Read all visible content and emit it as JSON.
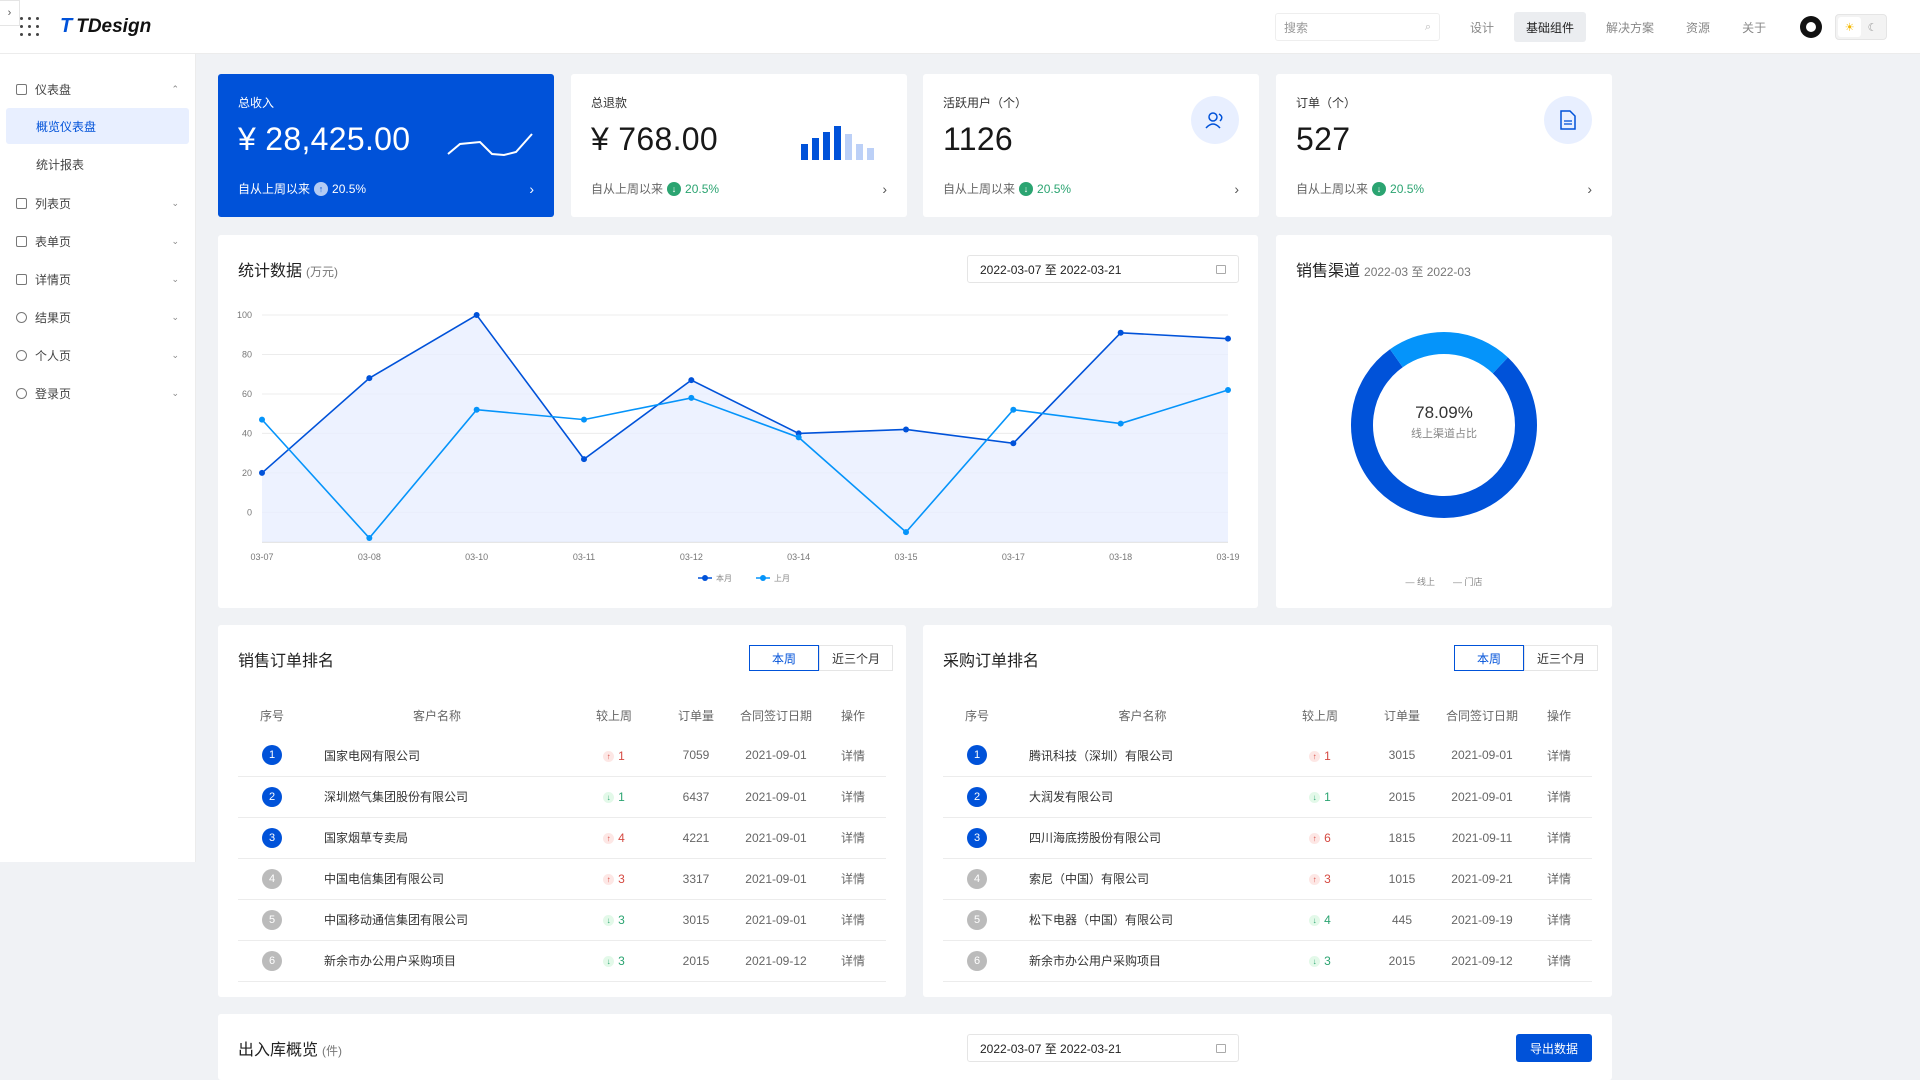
{
  "header": {
    "logo_text": "TDesign",
    "search_placeholder": "搜索",
    "nav": [
      "设计",
      "基础组件",
      "解决方案",
      "资源",
      "关于"
    ],
    "active_nav": "基础组件"
  },
  "sidebar": {
    "items": [
      {
        "label": "仪表盘",
        "expanded": true,
        "children": [
          "概览仪表盘",
          "统计报表"
        ]
      },
      {
        "label": "列表页"
      },
      {
        "label": "表单页"
      },
      {
        "label": "详情页"
      },
      {
        "label": "结果页"
      },
      {
        "label": "个人页"
      },
      {
        "label": "登录页"
      }
    ],
    "active_child": "概览仪表盘"
  },
  "stats": [
    {
      "label": "总收入",
      "value": "¥ 28,425.00",
      "foot": "自从上周以来",
      "pct": "20.5%",
      "trend": "up"
    },
    {
      "label": "总退款",
      "value": "¥ 768.00",
      "foot": "自从上周以来",
      "pct": "20.5%",
      "trend": "down"
    },
    {
      "label": "活跃用户（个）",
      "value": "1126",
      "foot": "自从上周以来",
      "pct": "20.5%",
      "trend": "down"
    },
    {
      "label": "订单（个）",
      "value": "527",
      "foot": "自从上周以来",
      "pct": "20.5%",
      "trend": "down"
    }
  ],
  "stats_panel": {
    "title": "统计数据",
    "unit": "(万元)",
    "date_range": "2022-03-07 至 2022-03-21"
  },
  "channel_panel": {
    "title": "销售渠道",
    "range": "2022-03 至 2022-03",
    "center_value": "78.09%",
    "center_label": "线上渠道占比",
    "legend": [
      "线上",
      "门店"
    ]
  },
  "chart_data": [
    {
      "type": "line",
      "x": [
        "03-07",
        "03-08",
        "03-10",
        "03-11",
        "03-12",
        "03-14",
        "03-15",
        "03-17",
        "03-18",
        "03-19"
      ],
      "series": [
        {
          "name": "本月",
          "values": [
            20,
            68,
            100,
            27,
            67,
            40,
            42,
            35,
            91,
            88
          ]
        },
        {
          "name": "上月",
          "values": [
            47,
            -13,
            52,
            47,
            58,
            38,
            -10,
            52,
            45,
            62
          ]
        }
      ],
      "yticks": [
        100,
        80,
        60,
        40,
        20,
        0
      ],
      "ylim": [
        -15,
        100
      ],
      "colors": [
        "#0052d9",
        "#0594fa"
      ],
      "area_fill": "#e8efff"
    },
    {
      "type": "pie",
      "categories": [
        "线上",
        "门店"
      ],
      "values": [
        78.09,
        21.91
      ],
      "colors": [
        "#0052d9",
        "#0594fa"
      ]
    }
  ],
  "sales_rank": {
    "title": "销售订单排名",
    "tabs": [
      "本周",
      "近三个月"
    ],
    "headers": [
      "序号",
      "客户名称",
      "较上周",
      "订单量",
      "合同签订日期",
      "操作"
    ],
    "rows": [
      {
        "rank": "1",
        "name": "国家电网有限公司",
        "change": "1",
        "dir": "up",
        "orders": "7059",
        "date": "2021-09-01",
        "op": "详情"
      },
      {
        "rank": "2",
        "name": "深圳燃气集团股份有限公司",
        "change": "1",
        "dir": "down",
        "orders": "6437",
        "date": "2021-09-01",
        "op": "详情"
      },
      {
        "rank": "3",
        "name": "国家烟草专卖局",
        "change": "4",
        "dir": "up",
        "orders": "4221",
        "date": "2021-09-01",
        "op": "详情"
      },
      {
        "rank": "4",
        "name": "中国电信集团有限公司",
        "change": "3",
        "dir": "up",
        "orders": "3317",
        "date": "2021-09-01",
        "op": "详情"
      },
      {
        "rank": "5",
        "name": "中国移动通信集团有限公司",
        "change": "3",
        "dir": "down",
        "orders": "3015",
        "date": "2021-09-01",
        "op": "详情"
      },
      {
        "rank": "6",
        "name": "新余市办公用户采购项目",
        "change": "3",
        "dir": "down",
        "orders": "2015",
        "date": "2021-09-12",
        "op": "详情"
      }
    ]
  },
  "purchase_rank": {
    "title": "采购订单排名",
    "tabs": [
      "本周",
      "近三个月"
    ],
    "headers": [
      "序号",
      "客户名称",
      "较上周",
      "订单量",
      "合同签订日期",
      "操作"
    ],
    "rows": [
      {
        "rank": "1",
        "name": "腾讯科技（深圳）有限公司",
        "change": "1",
        "dir": "up",
        "orders": "3015",
        "date": "2021-09-01",
        "op": "详情"
      },
      {
        "rank": "2",
        "name": "大润发有限公司",
        "change": "1",
        "dir": "down",
        "orders": "2015",
        "date": "2021-09-01",
        "op": "详情"
      },
      {
        "rank": "3",
        "name": "四川海底捞股份有限公司",
        "change": "6",
        "dir": "up",
        "orders": "1815",
        "date": "2021-09-11",
        "op": "详情"
      },
      {
        "rank": "4",
        "name": "索尼（中国）有限公司",
        "change": "3",
        "dir": "up",
        "orders": "1015",
        "date": "2021-09-21",
        "op": "详情"
      },
      {
        "rank": "5",
        "name": "松下电器（中国）有限公司",
        "change": "4",
        "dir": "down",
        "orders": "445",
        "date": "2021-09-19",
        "op": "详情"
      },
      {
        "rank": "6",
        "name": "新余市办公用户采购项目",
        "change": "3",
        "dir": "down",
        "orders": "2015",
        "date": "2021-09-12",
        "op": "详情"
      }
    ]
  },
  "inout": {
    "title": "出入库概览",
    "unit": "(件)",
    "date_range": "2022-03-07 至 2022-03-21",
    "export_label": "导出数据"
  }
}
